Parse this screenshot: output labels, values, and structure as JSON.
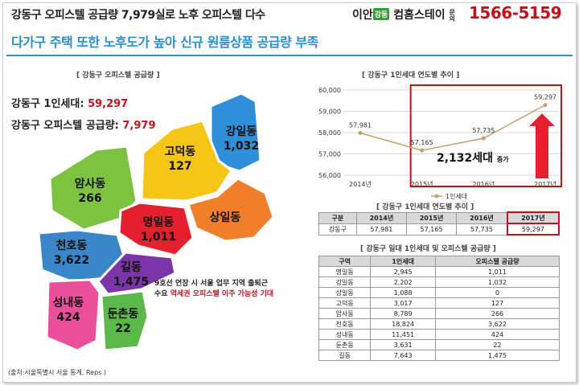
{
  "header": {
    "title": "강동구 오피스텔 공급량 7,979실로 노후 오피스텔 다수",
    "brand_prefix": "이안",
    "brand_badge": "강동",
    "brand_suffix": "컴홈스테이",
    "brand_inquiry": "문의",
    "phone": "1566-5159",
    "subtitle": "다가구 주택 또한 노후도가 높아 신규 원룸상품 공급량 부족",
    "accent_color": "#2a8fcf",
    "phone_color": "#c0121b"
  },
  "left": {
    "section_title": "[ 강동구 오피스텔 공급량 ]",
    "stat1_label": "강동구 1인세대: ",
    "stat1_value": "59,297",
    "stat2_label": "강동구 오피스텔 공급량: ",
    "stat2_value": "7,979",
    "regions": [
      {
        "name": "강일동",
        "value": "1,032",
        "color": "#2f8fd8"
      },
      {
        "name": "고덕동",
        "value": "127",
        "color": "#f5c518"
      },
      {
        "name": "암사동",
        "value": "266",
        "color": "#7ec241"
      },
      {
        "name": "상일동",
        "value": "",
        "color": "#f07e2a"
      },
      {
        "name": "명일동",
        "value": "1,011",
        "color": "#e5202e"
      },
      {
        "name": "천호동",
        "value": "3,622",
        "color": "#3a86c8"
      },
      {
        "name": "길동",
        "value": "1,475",
        "color": "#7b35a8"
      },
      {
        "name": "성내동",
        "value": "424",
        "color": "#ec4f9a"
      },
      {
        "name": "둔촌동",
        "value": "22",
        "color": "#5cb84a"
      }
    ],
    "note_line1": "9호선 연장 시 서울 업무 지역 출퇴근",
    "note_line2_a": "수요 ",
    "note_line2_hl": "역세권 오피스텔 이주 가능성 기대",
    "source": "(출처:서울특별시 서울 통계, Reps )"
  },
  "chart": {
    "section_title": "[ 강동구 1인세대 연도별 추이 ]",
    "increase_value": "2,132세대",
    "increase_suffix": "증가",
    "chart_data": {
      "type": "line",
      "categories": [
        "2014년",
        "2015년",
        "2016년",
        "2017년"
      ],
      "series": [
        {
          "name": "1인세대",
          "values": [
            57981,
            57165,
            57735,
            59297
          ]
        }
      ],
      "data_labels": [
        "57,981",
        "57,165",
        "57,735",
        "59,297"
      ],
      "yticks": [
        "60,000",
        "59,000",
        "58,000",
        "57,000",
        "56,000"
      ],
      "ylim": [
        56000,
        60000
      ],
      "line_color": "#c8a06a",
      "highlight_color": "#c0121b"
    }
  },
  "table1": {
    "title": "[ 강동구 1인세대 연도별 추이 ]",
    "headers": [
      "구분",
      "2014년",
      "2015년",
      "2016년",
      "2017년"
    ],
    "row": [
      "강동구",
      "57,981",
      "57,165",
      "57,735",
      "59,297"
    ]
  },
  "table2": {
    "title": "[ 강동구 일대 1인세대 및 오피스텔 공급량 ]",
    "headers": [
      "구역",
      "1인세대",
      "오피스텔 공급량"
    ],
    "rows": [
      [
        "명일동",
        "2,945",
        "1,011"
      ],
      [
        "강일동",
        "2,202",
        "1,032"
      ],
      [
        "상일동",
        "1,088",
        "0"
      ],
      [
        "고덕동",
        "3,017",
        "127"
      ],
      [
        "암사동",
        "8,789",
        "266"
      ],
      [
        "천호동",
        "18,824",
        "3,622"
      ],
      [
        "성내동",
        "11,451",
        "424"
      ],
      [
        "둔촌동",
        "3,631",
        "22"
      ],
      [
        "길동",
        "7,643",
        "1,475"
      ]
    ]
  }
}
